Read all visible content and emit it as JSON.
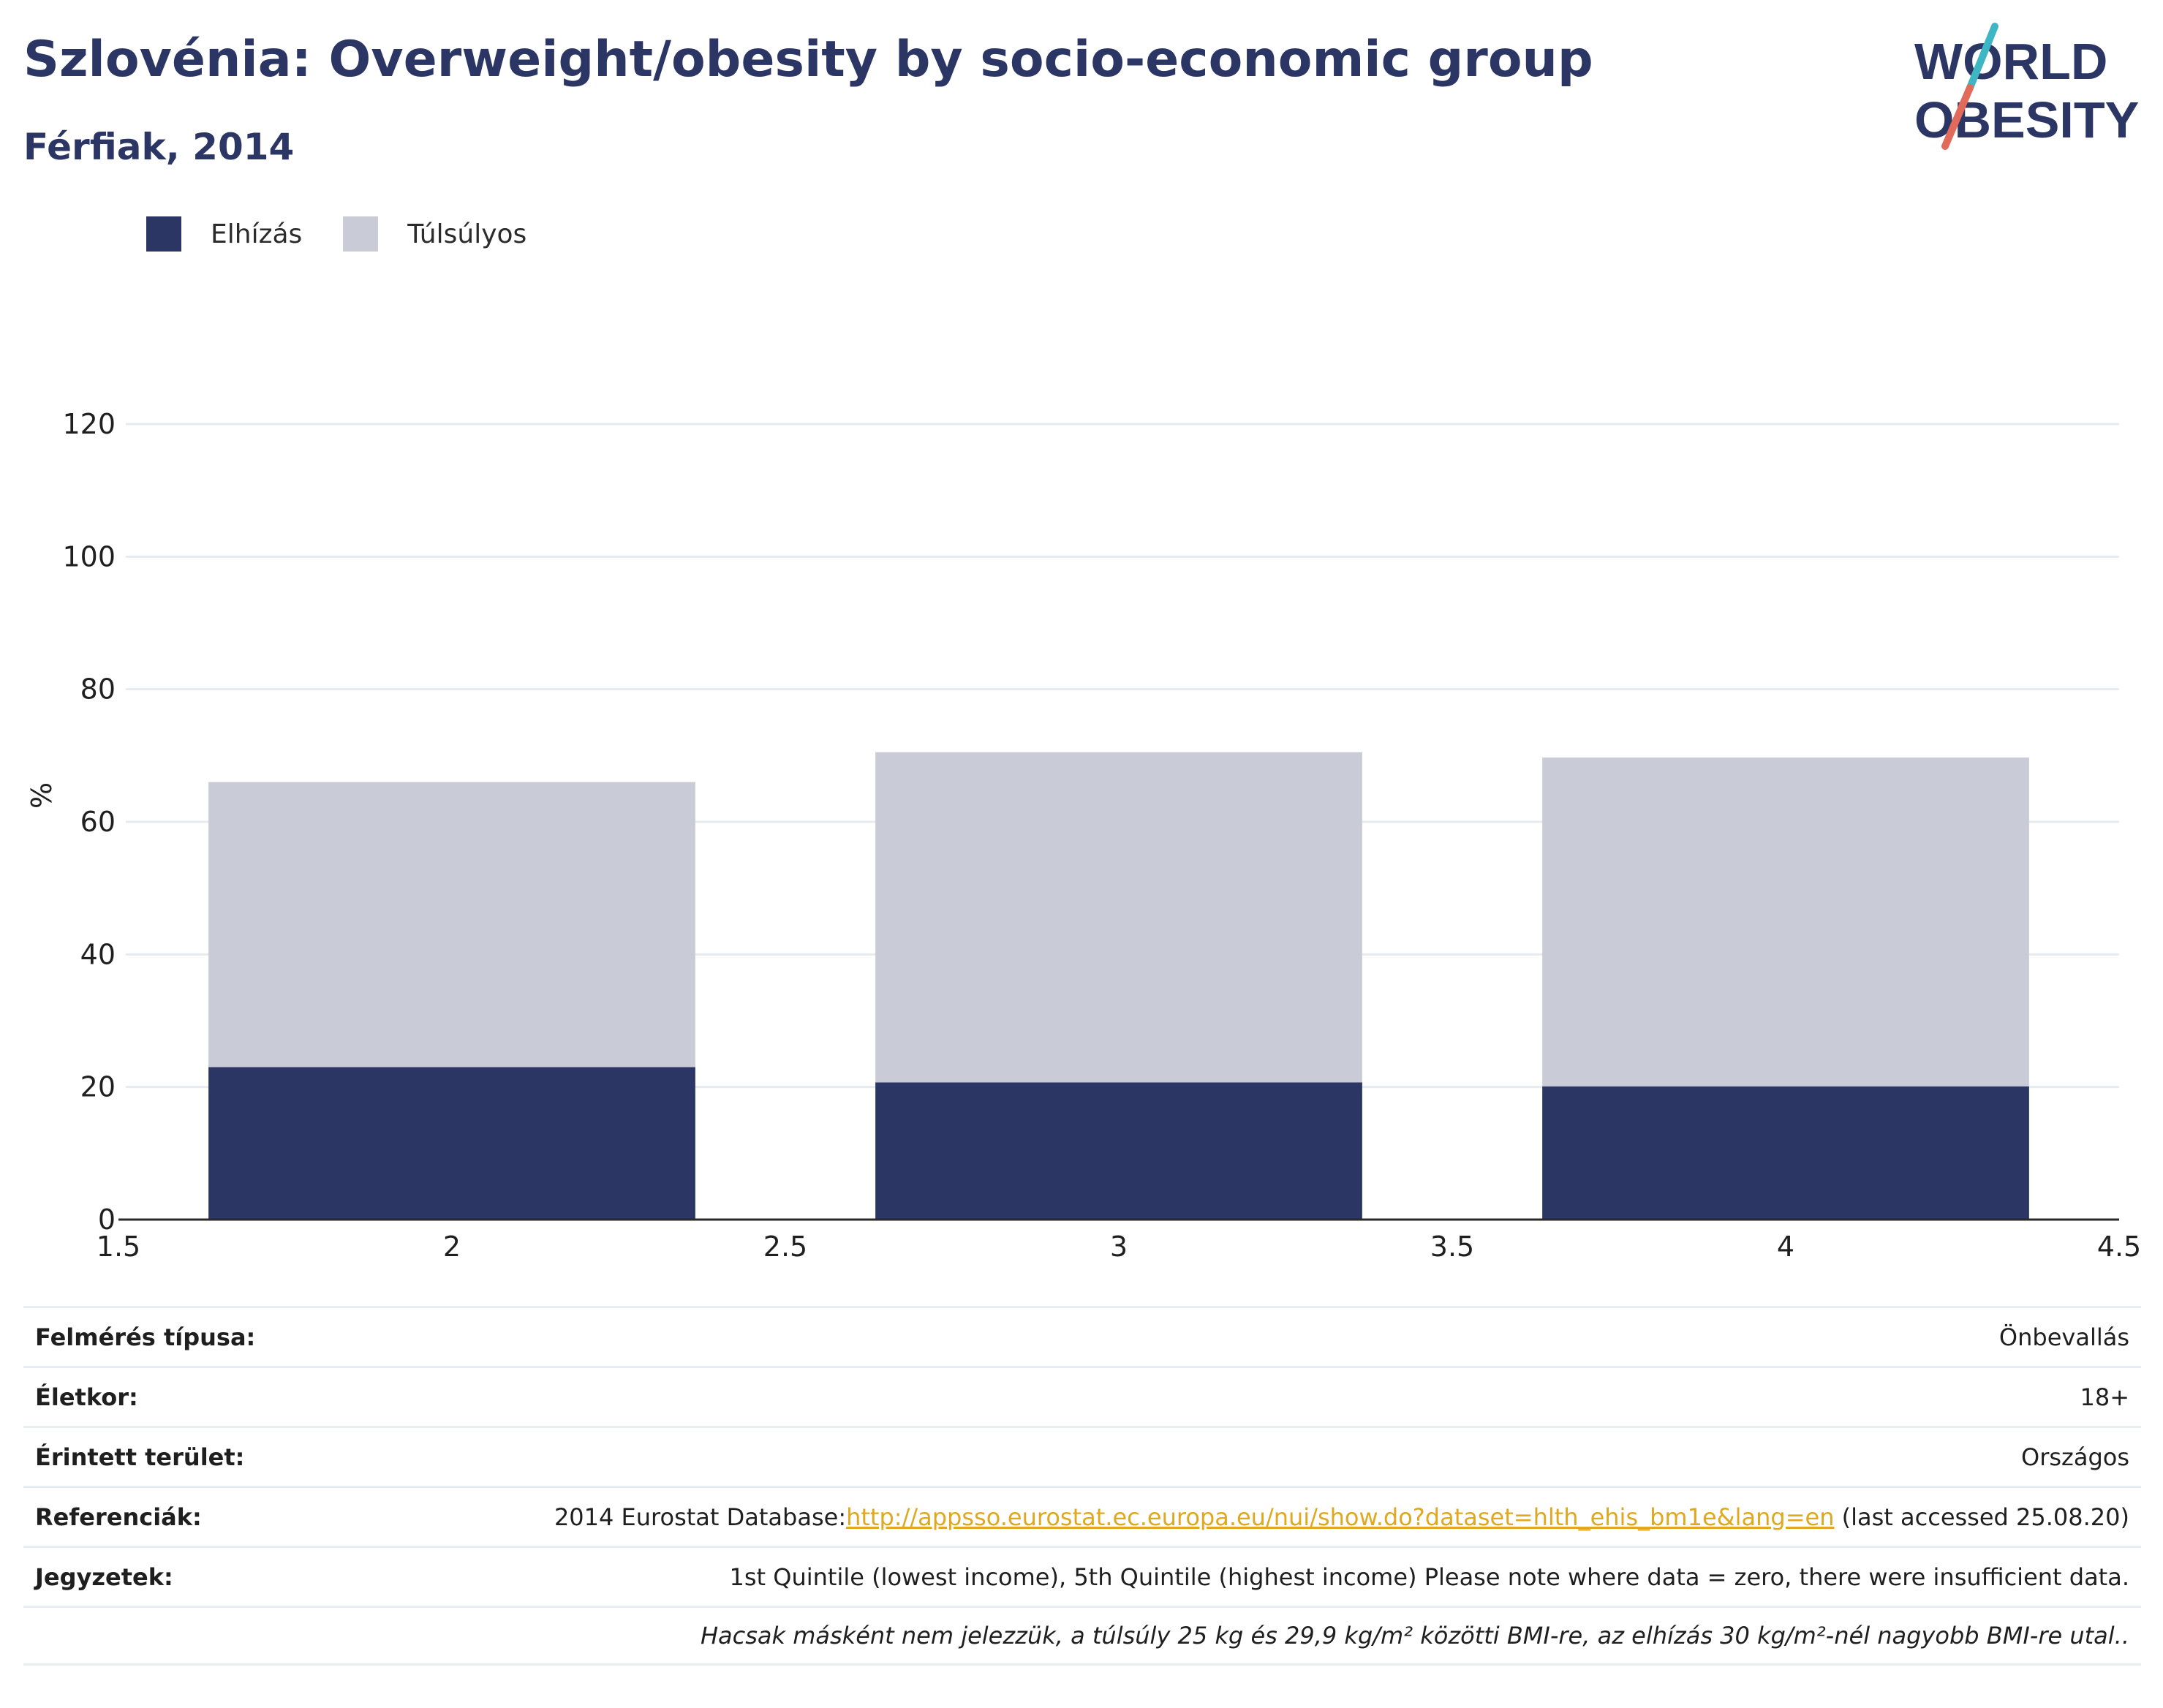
{
  "header": {
    "title": "Szlovénia: Overweight/obesity by socio-economic group",
    "subtitle": "Férfiak, 2014"
  },
  "logo": {
    "line1": "WORLD",
    "line2": "OBESITY"
  },
  "colors": {
    "obesity": "#2b3665",
    "overweight": "#c9ccd7",
    "text": "#2b3665",
    "link": "#e0a820"
  },
  "chart_data": {
    "type": "bar",
    "stacked": true,
    "x": [
      2,
      3,
      4
    ],
    "series": [
      {
        "name": "Elhízás",
        "values": [
          23.0,
          20.7,
          20.1
        ]
      },
      {
        "name": "Túlsúlyos",
        "values": [
          43.0,
          49.8,
          49.6
        ]
      }
    ],
    "xlim": [
      1.5,
      4.5
    ],
    "ylim": [
      0,
      120
    ],
    "xticks": [
      "1.5",
      "2",
      "2.5",
      "3",
      "3.5",
      "4",
      "4.5"
    ],
    "yticks": [
      "0",
      "20",
      "40",
      "60",
      "80",
      "100",
      "120"
    ],
    "ylabel": "%",
    "xlabel": "",
    "grid": true,
    "legend_position": "top-left"
  },
  "info": {
    "survey_label": "Felmérés típusa:",
    "survey_value": "Önbevallás",
    "age_label": "Életkor:",
    "age_value": "18+",
    "area_label": "Érintett terület:",
    "area_value": "Országos",
    "ref_label": "Referenciák:",
    "ref_prefix": "2014 Eurostat Database:",
    "ref_link": "http://appsso.eurostat.ec.europa.eu/nui/show.do?dataset=hlth_ehis_bm1e&lang=en",
    "ref_suffix": " (last accessed 25.08.20)",
    "notes_label": "Jegyzetek:",
    "notes_value": "1st Quintile (lowest income), 5th Quintile (highest income) Please note where data = zero, there were insufficient data.",
    "footnote": "Hacsak másként nem jelezzük, a túlsúly 25 kg és 29,9 kg/m² közötti BMI-re, az elhízás 30 kg/m²-nél nagyobb BMI-re utal.."
  }
}
